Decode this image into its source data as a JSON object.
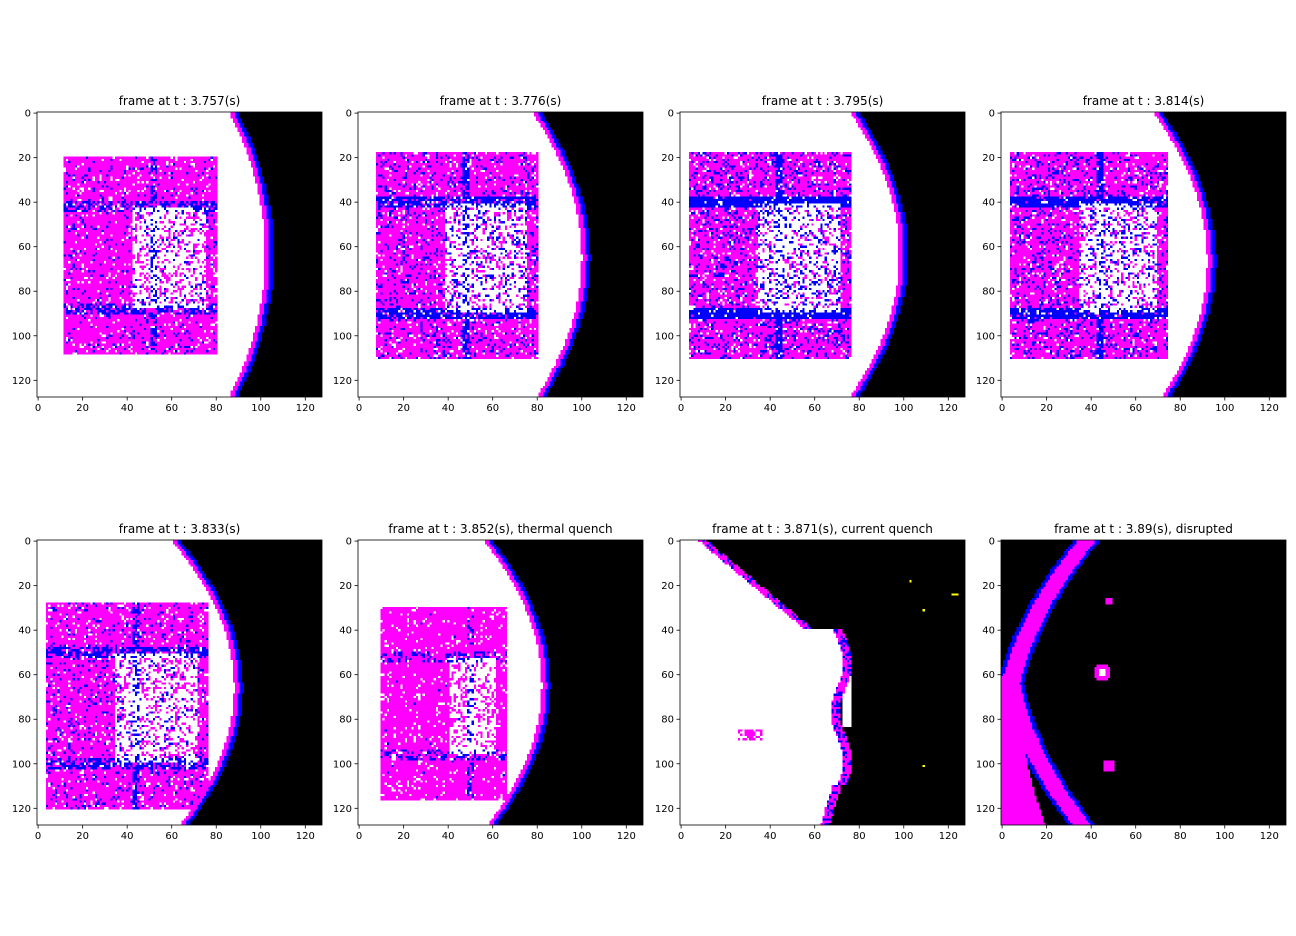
{
  "chart_data": {
    "type": "heatmap",
    "grid": false,
    "colors": {
      "plasma": "#ff00ff",
      "dense": "#0000ff",
      "bright": "#ffffff",
      "background": "#000000",
      "spark": "#ffff00"
    },
    "xticks": [
      0,
      20,
      40,
      60,
      80,
      100,
      120
    ],
    "yticks": [
      0,
      20,
      40,
      60,
      80,
      100,
      120
    ],
    "xlim": [
      0,
      128
    ],
    "ylim": [
      128,
      0
    ],
    "panels": [
      {
        "title": "frame at t : 3.757(s)",
        "boundary_x": [
          88,
          104,
          88
        ],
        "core": [
          12,
          20,
          80,
          108
        ],
        "blue_level": 0.25,
        "extra_glow": false
      },
      {
        "title": "frame at t : 3.776(s)",
        "boundary_x": [
          80,
          102,
          82
        ],
        "core": [
          8,
          18,
          80,
          110
        ],
        "blue_level": 0.45,
        "extra_glow": false
      },
      {
        "title": "frame at t : 3.795(s)",
        "boundary_x": [
          78,
          100,
          78
        ],
        "core": [
          4,
          18,
          76,
          110
        ],
        "blue_level": 0.6,
        "extra_glow": false
      },
      {
        "title": "frame at t : 3.814(s)",
        "boundary_x": [
          70,
          94,
          74
        ],
        "core": [
          4,
          18,
          74,
          110
        ],
        "blue_level": 0.55,
        "extra_glow": false
      },
      {
        "title": "frame at t : 3.833(s)",
        "boundary_x": [
          62,
          90,
          66
        ],
        "core": [
          4,
          28,
          76,
          120
        ],
        "blue_level": 0.3,
        "extra_glow": false
      },
      {
        "title": "frame at t : 3.852(s), thermal quench",
        "boundary_x": [
          58,
          84,
          60
        ],
        "core": [
          10,
          30,
          66,
          116
        ],
        "blue_level": 0.02,
        "extra_glow": false
      },
      {
        "title": "frame at t : 3.871(s), current quench",
        "boundary_x": [
          20,
          80,
          64
        ],
        "core": [
          0,
          0,
          0,
          0
        ],
        "blue_level": 0,
        "extra_glow": true
      },
      {
        "title": "frame at t : 3.89(s), disrupted",
        "boundary_x": [
          36,
          0,
          32
        ],
        "core": [
          0,
          0,
          0,
          0
        ],
        "blue_level": 0,
        "extra_glow": false
      }
    ]
  }
}
